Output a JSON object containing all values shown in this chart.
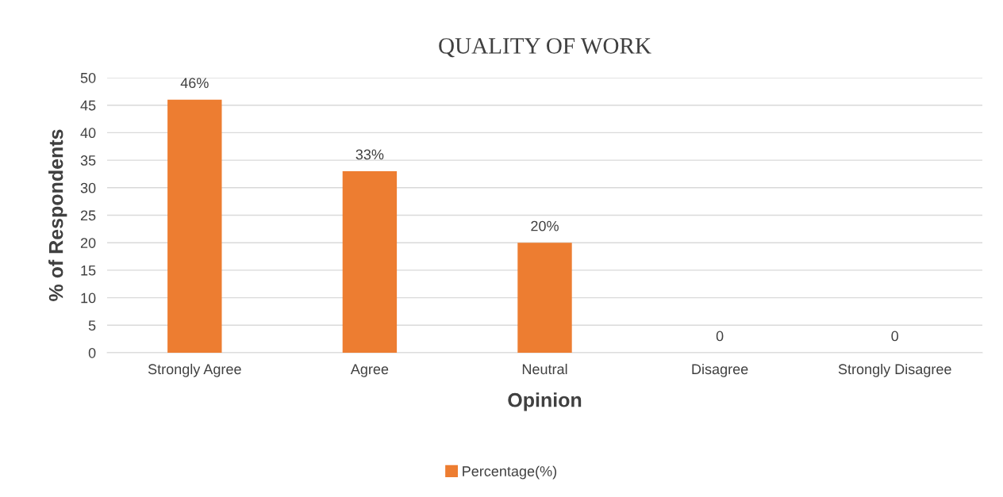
{
  "chart_data": {
    "type": "bar",
    "title": "QUALITY OF WORK",
    "xlabel": "Opinion",
    "ylabel": "% of Respondents",
    "categories": [
      "Strongly Agree",
      "Agree",
      "Neutral",
      "Disagree",
      "Strongly Disagree"
    ],
    "series": [
      {
        "name": "Percentage(%)",
        "color": "#ed7d31",
        "values": [
          46,
          33,
          20,
          0,
          0
        ],
        "value_labels": [
          "46%",
          "33%",
          "20%",
          "0",
          "0"
        ]
      }
    ],
    "ylim": [
      0,
      50
    ],
    "yticks": [
      0,
      5,
      10,
      15,
      20,
      25,
      30,
      35,
      40,
      45,
      50
    ],
    "grid": "y",
    "legend": "bottom"
  }
}
